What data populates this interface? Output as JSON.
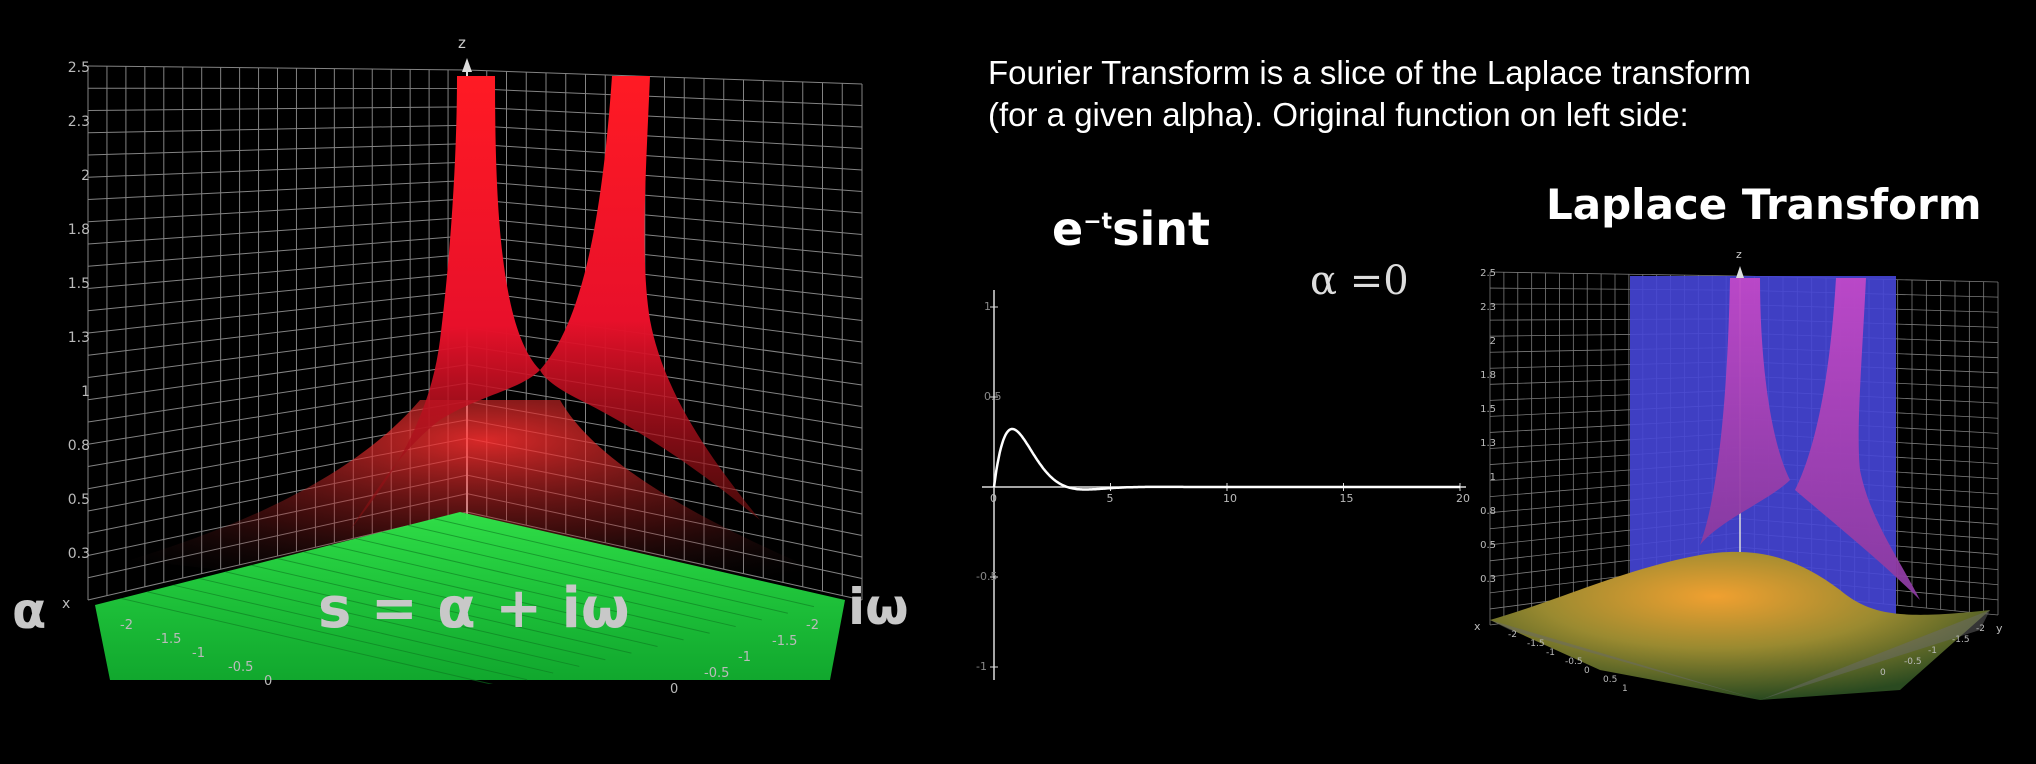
{
  "caption": {
    "line1": "Fourier Transform is a slice of the Laplace transform",
    "line2": "(for a given alpha). Original function on left side:"
  },
  "left_plot": {
    "z_axis_label": "z",
    "z_ticks": [
      "2.5",
      "2.3",
      "2",
      "1.8",
      "1.5",
      "1.3",
      "1",
      "0.8",
      "0.5",
      "0.3"
    ],
    "x_axis_label": "x",
    "alpha_label": "α",
    "iomega_label": "iω",
    "equation": "s = α + iω",
    "alpha_ticks": [
      "-2",
      "-1.5",
      "-1",
      "-0.5",
      "0"
    ],
    "omega_ticks": [
      "-2",
      "-1.5",
      "-1",
      "-0.5",
      "0"
    ],
    "colors": {
      "surface": "#ff1a1a",
      "plane": "#22d63c"
    }
  },
  "function_plot": {
    "formula_base": "e",
    "formula_exp": "−t",
    "formula_tail": "sint",
    "alpha_text": "α =",
    "alpha_value": "0",
    "x_ticks": [
      "0",
      "5",
      "10",
      "15",
      "20"
    ],
    "y_ticks": [
      "1",
      "0.5",
      "-0.5",
      "-1"
    ],
    "chart_data": {
      "type": "line",
      "title": "",
      "x": [
        0,
        0.5,
        1,
        1.5,
        2,
        2.5,
        3,
        3.5,
        4,
        5,
        6,
        8,
        10,
        15,
        20
      ],
      "series": [
        {
          "values": [
            0,
            0.291,
            0.31,
            0.223,
            0.123,
            0.049,
            0.007,
            -0.011,
            -0.014,
            -0.006,
            -0.001,
            0,
            0,
            0,
            0
          ]
        }
      ],
      "xlim": [
        0,
        20
      ],
      "ylim": [
        -1,
        1
      ],
      "color": "#ffffff"
    }
  },
  "right_plot": {
    "title": "Laplace Transform",
    "z_axis_label": "z",
    "z_ticks": [
      "2.5",
      "2.3",
      "2",
      "1.8",
      "1.5",
      "1.3",
      "1",
      "0.8",
      "0.5",
      "0.3"
    ],
    "x_axis_label": "x",
    "y_axis_label": "y",
    "x_ticks": [
      "-2",
      "-1.5",
      "-1",
      "-0.5",
      "0",
      "0.5",
      "1"
    ],
    "y_ticks": [
      "0",
      "-0.5",
      "-1",
      "-1.5",
      "-2"
    ],
    "colors": {
      "slice": "#4747d6",
      "surface": "#b03ab0",
      "base": "#e0a030"
    }
  }
}
